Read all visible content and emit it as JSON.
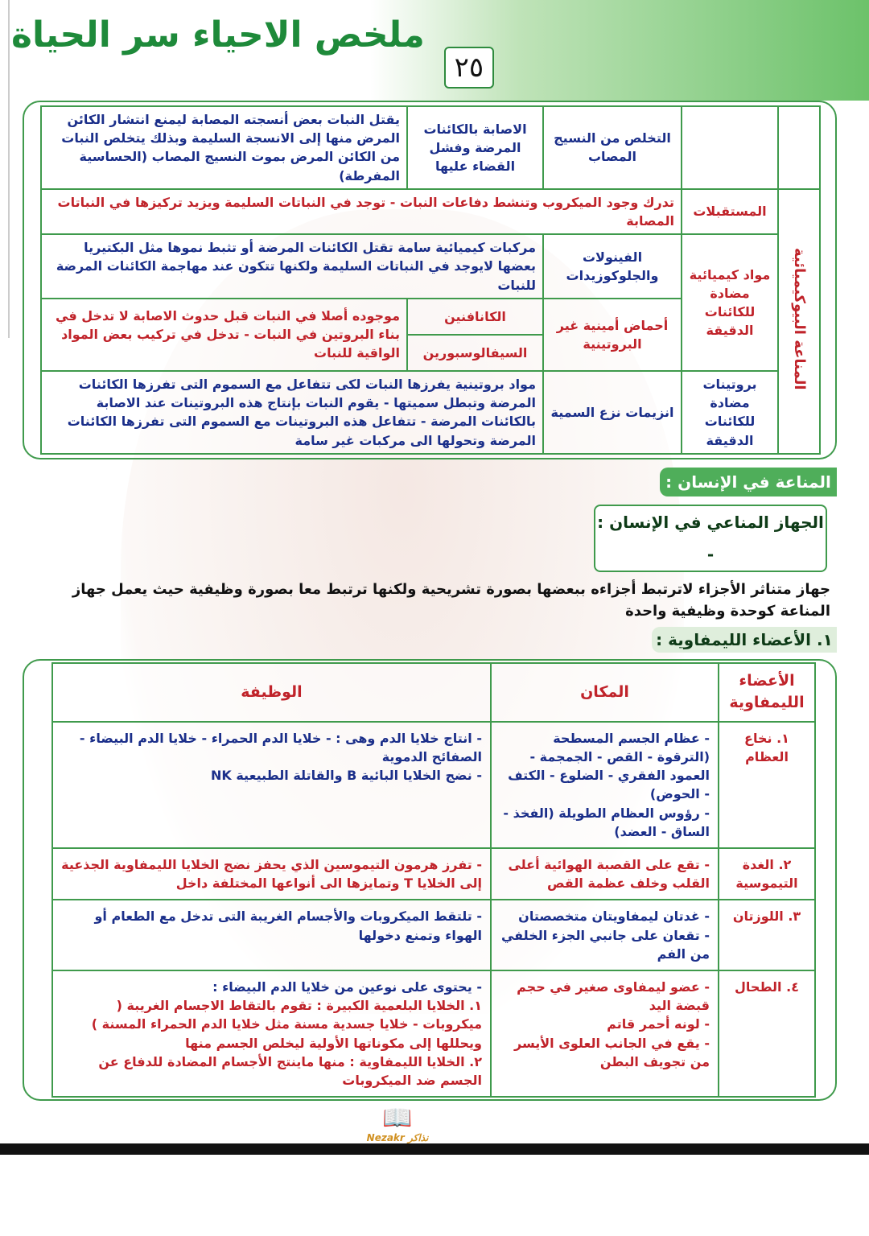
{
  "header": {
    "title": "ملخص الاحياء سر الحياة",
    "page_number": "٢٥"
  },
  "table1": {
    "vertical_label": "المناعة البيوكيميائية",
    "row1": {
      "name": "التخلص من النسيج المصاب",
      "cause": "الاصابة بالكائنات المرضة وفشل القضاء عليها",
      "desc": "يقتل النبات بعض أنسجته المصابة ليمنع انتشار الكائن المرض منها إلى الانسجة السليمة وبذلك يتخلص النبات من الكائن المرض بموت النسيج المصاب (الحساسية المفرطة)"
    },
    "row2": {
      "name": "المستقبلات",
      "desc": "تدرك وجود الميكروب وتنشط دفاعات النبات - توجد في النباتات السليمة ويزيد تركيزها في النباتات المصابة"
    },
    "group_chem": "مواد كيميائية مضادة للكائنات الدقيقة",
    "row3": {
      "name": "الفينولات والجلوكوزيدات",
      "desc": "مركبات كيميائية سامة تقتل الكائنات المرضة أو تثبط نموها مثل البكتيريا بعضها لايوجد في النباتات السليمة ولكنها تتكون عند مهاجمة الكائنات المرضة للنبات"
    },
    "row4": {
      "name": "أحماض أمينية غير البروتينية",
      "sub": [
        "الكانافنين",
        "السيفالوسبورين"
      ],
      "desc": "موجوده أصلا في النبات قبل حدوث الاصابة لا تدخل في بناء البروتين في النبات - تدخل في تركيب بعض المواد الواقية للنبات"
    },
    "row5": {
      "group": "بروتينات مضادة للكائنات الدقيقة",
      "name": "انزيمات نزع السمية",
      "desc": "مواد بروتينية يفرزها النبات لكى تتفاعل مع السموم التى تفرزها الكائنات المرضة وتبطل سميتها - يقوم النبات بإنتاج هذه البروتينات عند الاصابة بالكائنات المرضة - تتفاعل هذه البروتينات مع السموم التى تفرزها الكائنات المرضة وتحولها الى مركبات غير سامة"
    }
  },
  "section": {
    "heading": "المناعة في الإنسان :",
    "subheading": "الجهاز المناعي في الإنسان : -",
    "paragraph": "جهاز متناثر الأجزاء لاترتبط أجزاءه ببعضها بصورة تشريحية ولكنها ترتبط معا بصورة وظيفية حيث يعمل جهاز المناعة كوحدة وظيفية واحدة",
    "list_heading": "١. الأعضاء الليمفاوية :"
  },
  "table2": {
    "headers": {
      "organs": "الأعضاء الليمفاوية",
      "place": "المكان",
      "function": "الوظيفة"
    },
    "rows": [
      {
        "name": "١. نخاع العظام",
        "place": [
          "- عظام الجسم المسطحة (الترقوة - القص - الجمجمة - العمود الفقري - الضلوع - الكتف - الحوض)",
          "- رؤوس العظام الطويلة (الفخذ - الساق - العضد)"
        ],
        "function": [
          "- انتاج خلايا الدم وهى : - خلايا الدم الحمراء - خلايا الدم البيضاء - الصفائح الدموية",
          "- نضج الخلايا البائية B والقاتلة الطبيعية NK"
        ]
      },
      {
        "name": "٢. الغدة التيموسية",
        "place": [
          "- تقع على القصبة الهوائية أعلى القلب وخلف عظمة القص"
        ],
        "function": [
          "- تفرز هرمون التيموسين الذي يحفز نضج الخلايا الليمفاوية الجذعية إلى الخلايا T وتمايزها الى أنواعها المختلفة داخل"
        ]
      },
      {
        "name": "٣. اللوزتان",
        "place": [
          "- غدتان ليمفاويتان متخصصتان",
          "- تقعان على جانبي الجزء الخلفي من الفم"
        ],
        "function": [
          "- تلتقط الميكروبات والأجسام الغريبة التى تدخل مع الطعام أو الهواء وتمنع دخولها"
        ]
      },
      {
        "name": "٤. الطحال",
        "place": [
          "- عضو ليمفاوى صغير في حجم قبضة اليد",
          "- لونه أحمر قاتم",
          "- يقع في الجانب العلوى الأيسر من تجويف البطن"
        ],
        "function": [
          "- يحتوى على نوعين من خلايا الدم البيضاء :",
          "١. الخلايا البلعمية الكبيرة : تقوم بالتقاط الاجسام الغريبة ( ميكروبات - خلايا جسدية مسنة مثل خلايا الدم الحمراء المسنة ) ويحللها إلى مكوناتها الأولية ليخلص الجسم منها",
          "٢. الخلايا الليمفاوية : منها ماينتج الأجسام المضادة للدفاع عن الجسم ضد الميكروبات"
        ]
      }
    ]
  },
  "watermark": {
    "logo_text": "Nezakr نذاكر"
  },
  "colors": {
    "green": "#3f9a4c",
    "blue": "#1b2f8a",
    "red": "#c0232a"
  }
}
